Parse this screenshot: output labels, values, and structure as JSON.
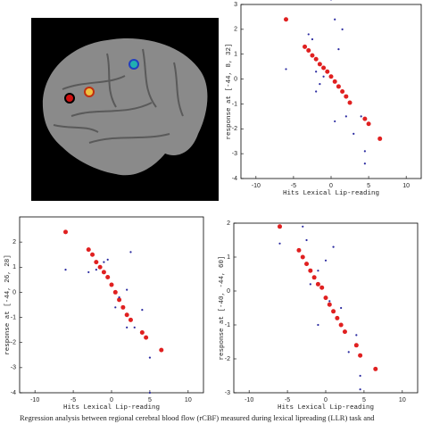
{
  "caption": "Regression analysis between regional cerebral blood flow (rCBF) measured during lexical lipreading (LLR) task and",
  "chart_data": [
    {
      "type": "scatter",
      "xlabel": "Hits Lexical Lip-reading",
      "ylabel": "response at [-44, 8, 32]",
      "xlim": [
        -12,
        12
      ],
      "ylim": [
        -4,
        3
      ],
      "xticks": [
        -10,
        -5,
        0,
        5,
        10
      ],
      "yticks": [
        -4,
        -3,
        -2,
        -1,
        0,
        1,
        2,
        3
      ],
      "series": [
        {
          "color": "#e02020",
          "x": [
            -6,
            -3.5,
            -3,
            -2.5,
            -2,
            -1.5,
            -1,
            -0.5,
            0,
            0.5,
            1,
            1.5,
            2,
            2.5,
            4.5,
            5,
            6.5
          ],
          "values": [
            2.4,
            1.3,
            1.15,
            0.95,
            0.8,
            0.6,
            0.45,
            0.3,
            0.1,
            -0.1,
            -0.3,
            -0.5,
            -0.7,
            -0.95,
            -1.6,
            -1.8,
            -2.4
          ]
        },
        {
          "color": "#2a2aa0",
          "x": [
            -6,
            -3,
            -2.5,
            -2,
            -1.5,
            -1,
            0,
            0.5,
            0.5,
            1,
            1.5,
            2,
            3,
            4,
            4.5,
            4.5,
            -2
          ],
          "values": [
            0.4,
            1.8,
            1.6,
            0.3,
            -0.2,
            0.1,
            3.2,
            2.4,
            -1.7,
            1.2,
            2.0,
            -1.5,
            -2.2,
            -1.5,
            -2.9,
            -3.4,
            -0.5
          ]
        }
      ]
    },
    {
      "type": "scatter",
      "xlabel": "Hits Lexical Lip-reading",
      "ylabel": "response at [-44, 26, 28]",
      "xlim": [
        -12,
        12
      ],
      "ylim": [
        -4,
        3
      ],
      "xticks": [
        -10,
        -5,
        0,
        5,
        10
      ],
      "yticks": [
        -4,
        -3,
        -2,
        -1,
        0,
        1,
        2
      ],
      "series": [
        {
          "color": "#e02020",
          "x": [
            -6,
            -3,
            -2.5,
            -2,
            -1.5,
            -1,
            -0.5,
            0,
            0.5,
            1,
            1.5,
            2,
            2.5,
            4,
            4.5,
            6.5
          ],
          "values": [
            2.4,
            1.7,
            1.5,
            1.2,
            1.0,
            0.8,
            0.6,
            0.3,
            0,
            -0.3,
            -0.6,
            -0.9,
            -1.1,
            -1.6,
            -1.8,
            -2.3
          ]
        },
        {
          "color": "#2a2aa0",
          "x": [
            -6,
            -3,
            -2,
            -1,
            -0.5,
            0.5,
            1,
            2,
            2.5,
            2,
            3,
            4,
            5,
            5
          ],
          "values": [
            0.9,
            0.8,
            0.9,
            1.2,
            1.3,
            -0.6,
            -0.2,
            0.1,
            1.6,
            -1.4,
            -1.4,
            -0.7,
            -2.6,
            -4
          ]
        }
      ]
    },
    {
      "type": "scatter",
      "xlabel": "Hits Lexical Lip-reading",
      "ylabel": "response at [-40, -44, 60]",
      "xlim": [
        -12,
        12
      ],
      "ylim": [
        -3,
        2
      ],
      "xticks": [
        -10,
        -5,
        0,
        5,
        10
      ],
      "yticks": [
        -3,
        -2,
        -1,
        0,
        1,
        2
      ],
      "series": [
        {
          "color": "#e02020",
          "x": [
            -6,
            -3.5,
            -3,
            -2.5,
            -2,
            -1.5,
            -1,
            -0.5,
            0,
            0.5,
            1,
            1.5,
            2,
            2.5,
            4,
            4.5,
            6.5
          ],
          "values": [
            1.9,
            1.2,
            1.0,
            0.8,
            0.6,
            0.4,
            0.2,
            0.1,
            -0.2,
            -0.4,
            -0.6,
            -0.8,
            -1.0,
            -1.2,
            -1.6,
            -1.9,
            -2.3
          ]
        },
        {
          "color": "#2a2aa0",
          "x": [
            -6,
            -3,
            -2.5,
            -2,
            -1,
            0,
            0.5,
            1,
            2,
            3,
            4,
            4.5,
            4.5,
            -1
          ],
          "values": [
            1.4,
            1.9,
            1.5,
            0.2,
            0.6,
            0.9,
            -0.3,
            1.3,
            -0.5,
            -1.8,
            -1.3,
            -2.5,
            -2.9,
            -1.0
          ]
        }
      ]
    }
  ]
}
